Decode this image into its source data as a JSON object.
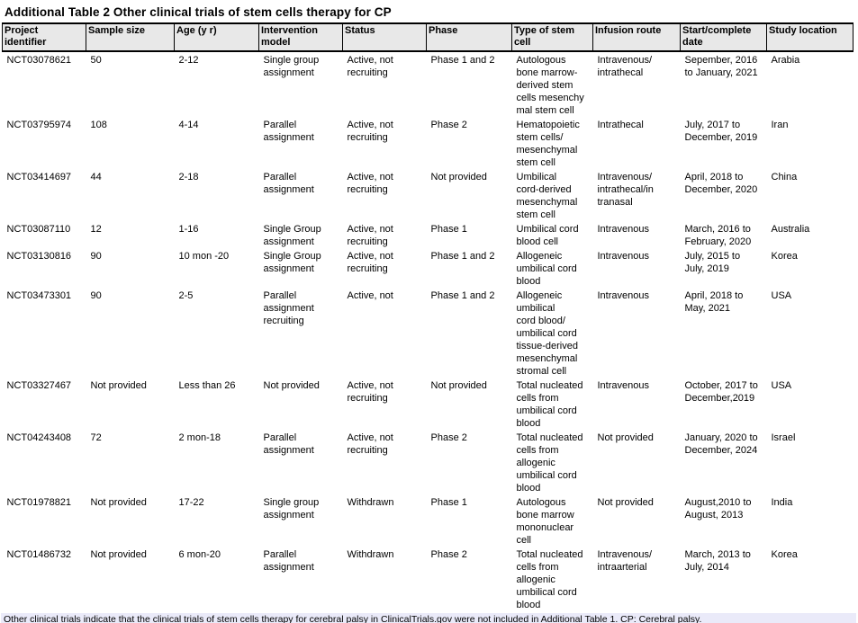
{
  "title": "Additional Table 2 Other clinical trials of stem cells therapy for CP",
  "table": {
    "columns": [
      "Project\nidentifier",
      "Sample size",
      "Age (y r)",
      "Intervention\nmodel",
      "Status",
      "Phase",
      "Type of stem\ncell",
      "Infusion route",
      "Start/complete\ndate",
      "Study location"
    ],
    "rows": [
      [
        "NCT03078621",
        "50",
        "2-12",
        "Single group\nassignment",
        "Active, not\nrecruiting",
        "Phase 1 and 2",
        "Autologous\nbone marrow-\nderived stem\ncells mesenchy\nmal stem cell",
        "Intravenous/\nintrathecal",
        "Sepember, 2016\nto January, 2021",
        "Arabia"
      ],
      [
        "NCT03795974",
        "108",
        "4-14",
        "Parallel\nassignment",
        "Active, not\nrecruiting",
        "Phase 2",
        "Hematopoietic\nstem cells/\nmesenchymal\nstem cell",
        "Intrathecal",
        "July, 2017 to\nDecember, 2019",
        "Iran"
      ],
      [
        "NCT03414697",
        "44",
        "2-18",
        "Parallel\nassignment",
        "Active, not\nrecruiting",
        "Not provided",
        "Umbilical\ncord-derived\nmesenchymal\nstem cell",
        "Intravenous/\nintrathecal/in\ntranasal",
        "April, 2018 to\nDecember, 2020",
        "China"
      ],
      [
        "NCT03087110",
        "12",
        "1-16",
        "Single Group\nassignment",
        "Active, not\nrecruiting",
        "Phase 1",
        "Umbilical cord\nblood cell",
        "Intravenous",
        "March, 2016 to\nFebruary, 2020",
        "Australia"
      ],
      [
        "NCT03130816",
        "90",
        "10 mon -20",
        "Single Group\nassignment",
        "Active, not\nrecruiting",
        "Phase 1 and 2",
        "Allogeneic\numbilical cord\nblood",
        "Intravenous",
        "July, 2015 to\nJuly, 2019",
        "Korea"
      ],
      [
        "NCT03473301",
        "90",
        "2-5",
        "Parallel\nassignment\nrecruiting",
        "Active, not",
        "Phase 1 and 2",
        "Allogeneic\numbilical\ncord blood/\numbilical cord\ntissue-derived\nmesenchymal\nstromal cell",
        "Intravenous",
        "April, 2018 to\nMay, 2021",
        "USA"
      ],
      [
        "NCT03327467",
        "Not provided",
        "Less than 26",
        "Not provided",
        "Active, not\nrecruiting",
        "Not provided",
        "Total nucleated\ncells from\numbilical cord\nblood",
        "Intravenous",
        "October, 2017 to\nDecember,2019",
        "USA"
      ],
      [
        "NCT04243408",
        "72",
        "2 mon-18",
        "Parallel\nassignment",
        "Active, not\nrecruiting",
        "Phase 2",
        "Total nucleated\ncells from\nallogenic\numbilical cord\nblood",
        "Not provided",
        "January, 2020 to\nDecember, 2024",
        "Israel"
      ],
      [
        "NCT01978821",
        "Not provided",
        "17-22",
        "Single group\nassignment",
        "Withdrawn",
        "Phase 1",
        "Autologous\nbone marrow\nmononuclear cell",
        "Not provided",
        "August,2010 to\nAugust, 2013",
        "India"
      ],
      [
        "NCT01486732",
        "Not provided",
        "6 mon-20",
        "Parallel\nassignment",
        "Withdrawn",
        "Phase 2",
        "Total nucleated\ncells from\nallogenic\numbilical cord\nblood",
        "Intravenous/\nintraarterial",
        "March, 2013 to\nJuly, 2014",
        "Korea"
      ]
    ]
  },
  "footnote": "Other clinical trials indicate that the clinical trials of stem cells therapy for cerebral palsy in ClinicalTrials.gov were not included in Additional Table 1. CP: Cerebral palsy.",
  "colors": {
    "header_background": "#E8E8E8",
    "footnote_background": "#EAEAF9",
    "border": "#000000",
    "text": "#000000"
  }
}
